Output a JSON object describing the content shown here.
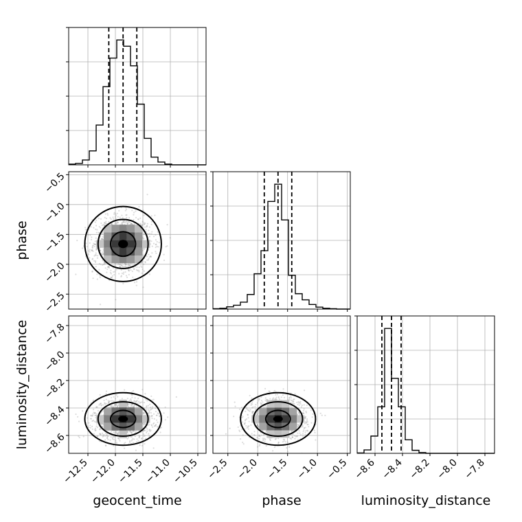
{
  "chart_data": {
    "type": "corner",
    "parameters": [
      {
        "name": "geocent_time",
        "label": "geocent_time",
        "range": [
          -12.85,
          -10.35
        ],
        "ticks": [
          -12.5,
          -12.0,
          -11.5,
          -11.0,
          -10.5
        ],
        "tick_labels": [
          "−12.5",
          "−12.0",
          "−11.5",
          "−11.0",
          "−10.5"
        ],
        "quantiles": [
          -12.12,
          -11.86,
          -11.61
        ],
        "histogram": {
          "edges": [
            -12.85,
            -12.725,
            -12.6,
            -12.475,
            -12.35,
            -12.225,
            -12.1,
            -11.975,
            -11.85,
            -11.725,
            -11.6,
            -11.475,
            -11.35,
            -11.225,
            -11.1,
            -10.975,
            -10.85,
            -10.725,
            -10.6,
            -10.475,
            -10.35
          ],
          "counts": [
            1,
            2,
            7,
            20,
            57,
            112,
            153,
            179,
            170,
            142,
            87,
            38,
            11,
            4,
            1,
            0,
            0,
            0,
            0,
            0
          ]
        }
      },
      {
        "name": "phase",
        "label": "phase",
        "range": [
          -2.75,
          -0.45
        ],
        "ticks": [
          -2.5,
          -2.0,
          -1.5,
          -1.0,
          -0.5
        ],
        "tick_labels": [
          "−2.5",
          "−2.0",
          "−1.5",
          "−1.0",
          "−0.5"
        ],
        "quantiles": [
          -1.89,
          -1.66,
          -1.43
        ],
        "histogram": {
          "edges": [
            -2.75,
            -2.635,
            -2.52,
            -2.405,
            -2.29,
            -2.175,
            -2.06,
            -1.945,
            -1.83,
            -1.715,
            -1.6,
            -1.485,
            -1.37,
            -1.255,
            -1.14,
            -1.025,
            -0.91,
            -0.795,
            -0.68,
            -0.565,
            -0.45
          ],
          "counts": [
            1,
            2,
            6,
            10,
            18,
            38,
            92,
            152,
            280,
            325,
            232,
            88,
            40,
            24,
            12,
            5,
            2,
            1,
            0,
            0
          ]
        }
      },
      {
        "name": "luminosity_distance",
        "label": "luminosity_distance",
        "range": [
          -8.73,
          -7.73
        ],
        "ticks": [
          -8.6,
          -8.4,
          -8.2,
          -8.0,
          -7.8
        ],
        "tick_labels": [
          "−8.6",
          "−8.4",
          "−8.2",
          "−8.0",
          "−7.8"
        ],
        "quantiles": [
          -8.55,
          -8.48,
          -8.41
        ],
        "histogram": {
          "edges": [
            -8.73,
            -8.68,
            -8.63,
            -8.58,
            -8.53,
            -8.48,
            -8.43,
            -8.38,
            -8.33,
            -8.28,
            -8.23,
            -8.18,
            -8.13,
            -8.08,
            -8.03,
            -7.98,
            -7.93,
            -7.88,
            -7.83,
            -7.78,
            -7.73
          ],
          "counts": [
            1,
            9,
            46,
            124,
            333,
            200,
            124,
            36,
            8,
            2,
            0,
            0,
            0,
            0,
            0,
            0,
            0,
            0,
            0,
            0
          ]
        }
      }
    ],
    "contour_levels": [
      0.39,
      0.86,
      0.99
    ],
    "grid": true,
    "marginal_ytick_labels": false
  }
}
